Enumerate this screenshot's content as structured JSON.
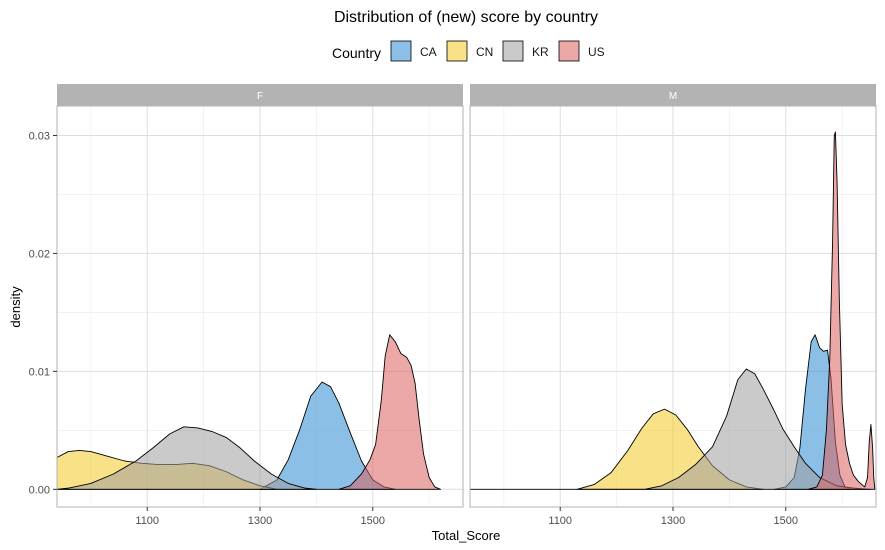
{
  "chart_data": {
    "type": "area",
    "subtype": "density",
    "title": "Distribution of (new) score by country",
    "xlabel": "Total_Score",
    "ylabel": "density",
    "xlim": [
      940,
      1660
    ],
    "ylim": [
      -0.0015,
      0.0325
    ],
    "x_ticks": [
      1100,
      1300,
      1500
    ],
    "y_ticks": [
      0,
      0.01,
      0.02,
      0.03
    ],
    "y_tick_labels": [
      "0.00",
      "0.01",
      "0.02",
      "0.03"
    ],
    "x_tick_labels": [
      "1100",
      "1300",
      "1500"
    ],
    "grid": true,
    "legend": {
      "title": "Country",
      "position": "top"
    },
    "fill_opacity": 0.55,
    "series_meta": [
      {
        "name": "CA",
        "color": "#2b8ad0"
      },
      {
        "name": "CN",
        "color": "#f2c824"
      },
      {
        "name": "KR",
        "color": "#9e9e9e"
      },
      {
        "name": "US",
        "color": "#da615e"
      }
    ],
    "panels": [
      {
        "label": "F",
        "series": [
          {
            "name": "CA",
            "points": [
              [
                1300,
                0
              ],
              [
                1330,
                0.0008
              ],
              [
                1350,
                0.0025
              ],
              [
                1370,
                0.005
              ],
              [
                1390,
                0.0079
              ],
              [
                1410,
                0.0091
              ],
              [
                1425,
                0.0087
              ],
              [
                1440,
                0.0073
              ],
              [
                1460,
                0.0048
              ],
              [
                1480,
                0.0024
              ],
              [
                1500,
                0.0008
              ],
              [
                1520,
                0.0002
              ],
              [
                1540,
                0
              ]
            ]
          },
          {
            "name": "CN",
            "points": [
              [
                940,
                0
              ],
              [
                940,
                0.0027
              ],
              [
                960,
                0.0032
              ],
              [
                980,
                0.0033
              ],
              [
                1000,
                0.0032
              ],
              [
                1030,
                0.0028
              ],
              [
                1060,
                0.0024
              ],
              [
                1090,
                0.0022
              ],
              [
                1120,
                0.0021
              ],
              [
                1150,
                0.0021
              ],
              [
                1180,
                0.0022
              ],
              [
                1210,
                0.002
              ],
              [
                1240,
                0.0015
              ],
              [
                1270,
                0.0008
              ],
              [
                1300,
                0.0003
              ],
              [
                1330,
                0
              ]
            ]
          },
          {
            "name": "KR",
            "points": [
              [
                940,
                0
              ],
              [
                960,
                0.0001
              ],
              [
                1000,
                0.0005
              ],
              [
                1040,
                0.0013
              ],
              [
                1080,
                0.0024
              ],
              [
                1110,
                0.0035
              ],
              [
                1140,
                0.0047
              ],
              [
                1165,
                0.0053
              ],
              [
                1190,
                0.0052
              ],
              [
                1215,
                0.0049
              ],
              [
                1240,
                0.0044
              ],
              [
                1265,
                0.0035
              ],
              [
                1290,
                0.0024
              ],
              [
                1320,
                0.0013
              ],
              [
                1350,
                0.0005
              ],
              [
                1380,
                0.0001
              ],
              [
                1400,
                0
              ]
            ]
          },
          {
            "name": "US",
            "points": [
              [
                1440,
                0
              ],
              [
                1460,
                0.0003
              ],
              [
                1480,
                0.0013
              ],
              [
                1495,
                0.0025
              ],
              [
                1505,
                0.0038
              ],
              [
                1515,
                0.0075
              ],
              [
                1522,
                0.0113
              ],
              [
                1530,
                0.0131
              ],
              [
                1540,
                0.0125
              ],
              [
                1550,
                0.0115
              ],
              [
                1560,
                0.0112
              ],
              [
                1568,
                0.0105
              ],
              [
                1575,
                0.009
              ],
              [
                1582,
                0.006
              ],
              [
                1590,
                0.003
              ],
              [
                1600,
                0.001
              ],
              [
                1610,
                0.0002
              ],
              [
                1620,
                0
              ]
            ]
          }
        ]
      },
      {
        "label": "M",
        "series": [
          {
            "name": "CA",
            "points": [
              [
                1480,
                0
              ],
              [
                1500,
                0.0002
              ],
              [
                1515,
                0.001
              ],
              [
                1525,
                0.0035
              ],
              [
                1535,
                0.0085
              ],
              [
                1545,
                0.0125
              ],
              [
                1552,
                0.0131
              ],
              [
                1560,
                0.012
              ],
              [
                1567,
                0.0117
              ],
              [
                1574,
                0.0118
              ],
              [
                1580,
                0.0095
              ],
              [
                1588,
                0.004
              ],
              [
                1596,
                0.0012
              ],
              [
                1605,
                0.0002
              ],
              [
                1615,
                0
              ]
            ]
          },
          {
            "name": "CN",
            "points": [
              [
                1130,
                0
              ],
              [
                1160,
                0.0004
              ],
              [
                1190,
                0.0014
              ],
              [
                1220,
                0.0033
              ],
              [
                1245,
                0.0052
              ],
              [
                1265,
                0.0064
              ],
              [
                1285,
                0.0068
              ],
              [
                1305,
                0.0063
              ],
              [
                1325,
                0.0051
              ],
              [
                1345,
                0.0036
              ],
              [
                1370,
                0.002
              ],
              [
                1400,
                0.0008
              ],
              [
                1430,
                0.0002
              ],
              [
                1460,
                0
              ]
            ]
          },
          {
            "name": "KR",
            "points": [
              [
                940,
                0
              ],
              [
                1250,
                0
              ],
              [
                1280,
                0.0003
              ],
              [
                1310,
                0.001
              ],
              [
                1340,
                0.0021
              ],
              [
                1370,
                0.0036
              ],
              [
                1395,
                0.0062
              ],
              [
                1415,
                0.0093
              ],
              [
                1430,
                0.0102
              ],
              [
                1445,
                0.0098
              ],
              [
                1460,
                0.0085
              ],
              [
                1478,
                0.0068
              ],
              [
                1495,
                0.0051
              ],
              [
                1515,
                0.0036
              ],
              [
                1535,
                0.0022
              ],
              [
                1560,
                0.001
              ],
              [
                1590,
                0.0003
              ],
              [
                1620,
                0.0001
              ],
              [
                1650,
                0
              ]
            ]
          },
          {
            "name": "US",
            "points": [
              [
                1540,
                0
              ],
              [
                1555,
                0.0002
              ],
              [
                1565,
                0.0012
              ],
              [
                1572,
                0.005
              ],
              [
                1578,
                0.011
              ],
              [
                1583,
                0.021
              ],
              [
                1586,
                0.03
              ],
              [
                1588,
                0.0303
              ],
              [
                1591,
                0.026
              ],
              [
                1595,
                0.016
              ],
              [
                1600,
                0.0072
              ],
              [
                1606,
                0.0038
              ],
              [
                1613,
                0.0022
              ],
              [
                1620,
                0.0012
              ],
              [
                1628,
                0.0007
              ],
              [
                1635,
                0.0004
              ],
              [
                1640,
                0.0002
              ],
              [
                1645,
                0.001
              ],
              [
                1648,
                0.004
              ],
              [
                1651,
                0.0055
              ],
              [
                1654,
                0.0035
              ],
              [
                1656,
                0.001
              ],
              [
                1658,
                0
              ]
            ]
          }
        ]
      }
    ]
  }
}
